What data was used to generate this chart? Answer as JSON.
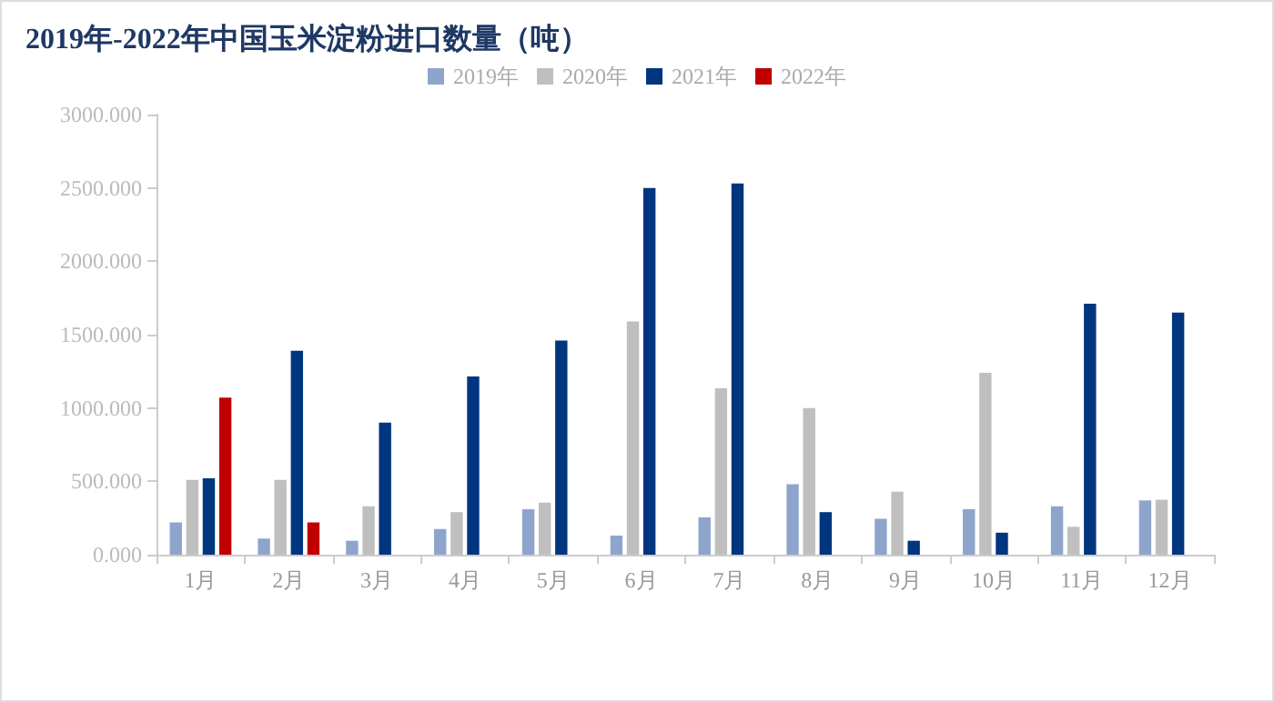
{
  "chart_data": {
    "type": "bar",
    "title": "2019年-2022年中国玉米淀粉进口数量（吨）",
    "categories": [
      "1月",
      "2月",
      "3月",
      "4月",
      "5月",
      "6月",
      "7月",
      "8月",
      "9月",
      "10月",
      "11月",
      "12月"
    ],
    "series": [
      {
        "name": "2019年",
        "color": "#8ea5cb",
        "values": [
          220,
          110,
          95,
          175,
          310,
          130,
          255,
          480,
          245,
          310,
          330,
          370
        ]
      },
      {
        "name": "2020年",
        "color": "#bfbfbf",
        "values": [
          510,
          510,
          330,
          290,
          355,
          1590,
          1135,
          1000,
          430,
          1240,
          190,
          375
        ]
      },
      {
        "name": "2021年",
        "color": "#003580",
        "values": [
          520,
          1390,
          900,
          1215,
          1460,
          2500,
          2530,
          290,
          95,
          150,
          1710,
          1650
        ]
      },
      {
        "name": "2022年",
        "color": "#c00000",
        "values": [
          1070,
          220,
          null,
          null,
          null,
          null,
          null,
          null,
          null,
          null,
          null,
          null
        ]
      }
    ],
    "ylim": [
      0,
      3000
    ],
    "yticks": [
      {
        "value": 0,
        "label": "0.000"
      },
      {
        "value": 500,
        "label": "500.000"
      },
      {
        "value": 1000,
        "label": "1000.000"
      },
      {
        "value": 1500,
        "label": "1500.000"
      },
      {
        "value": 2000,
        "label": "2000.000"
      },
      {
        "value": 2500,
        "label": "2500.000"
      },
      {
        "value": 3000,
        "label": "3000.000"
      }
    ],
    "grid": false,
    "legend": "top"
  }
}
